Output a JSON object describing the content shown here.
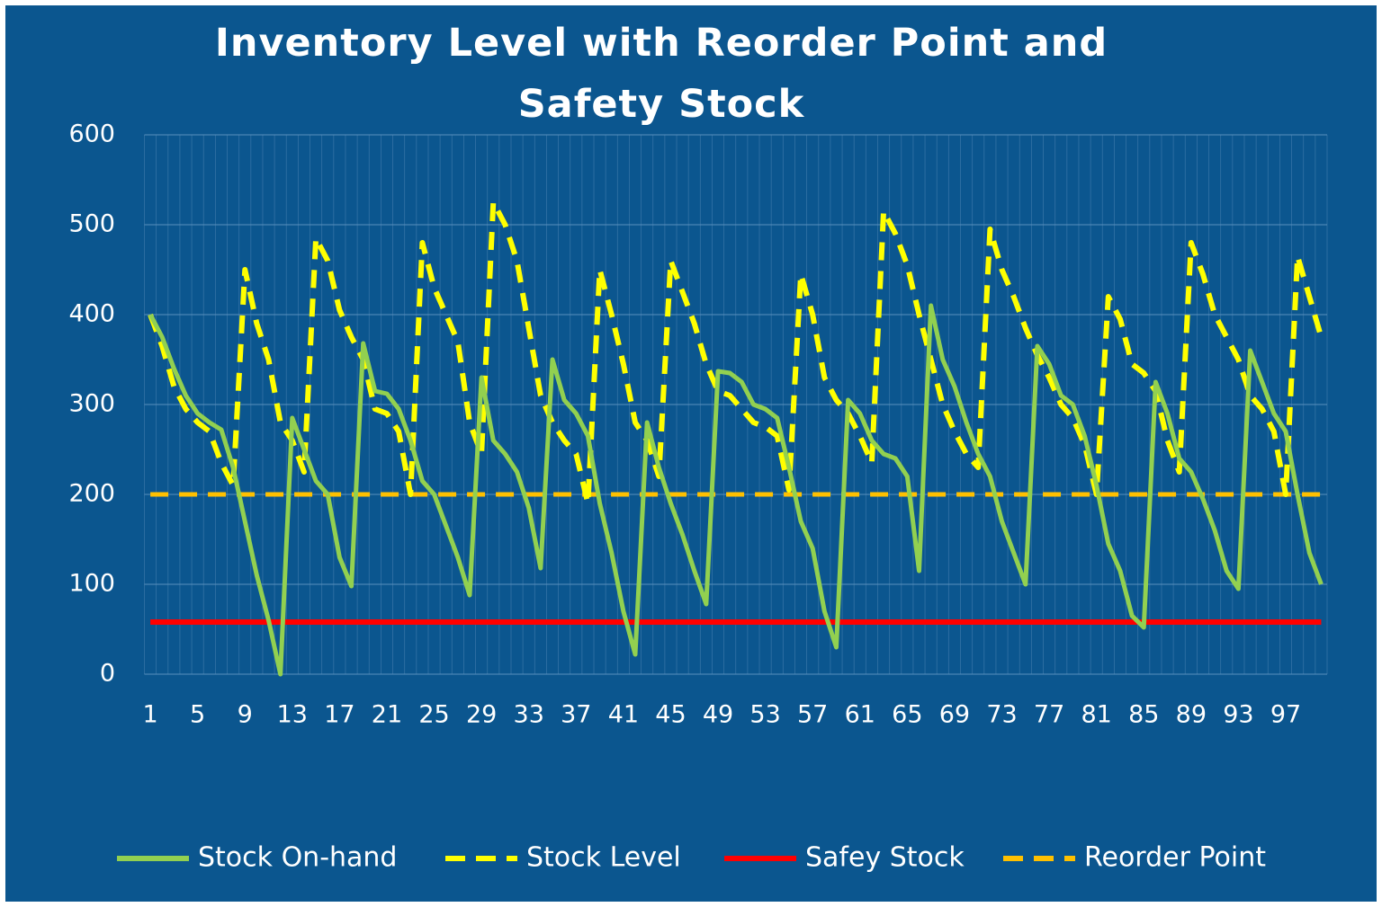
{
  "chart_data": {
    "type": "line",
    "title": "Inventory Level with Reorder Point and Safety Stock",
    "categories": [
      1,
      null,
      null,
      null,
      5,
      null,
      null,
      null,
      9,
      null,
      null,
      null,
      13,
      null,
      null,
      null,
      17,
      null,
      null,
      null,
      21,
      null,
      null,
      null,
      25,
      null,
      null,
      null,
      29,
      null,
      null,
      null,
      33,
      null,
      null,
      null,
      37,
      null,
      null,
      null,
      41,
      null,
      null,
      null,
      45,
      null,
      null,
      null,
      49,
      null,
      null,
      null,
      53,
      null,
      null,
      null,
      57,
      null,
      null,
      null,
      61,
      null,
      null,
      null,
      65,
      null,
      null,
      null,
      69,
      null,
      null,
      null,
      73,
      null,
      null,
      null,
      77,
      null,
      null,
      null,
      81,
      null,
      null,
      null,
      85,
      null,
      null,
      null,
      89,
      null,
      null,
      null,
      93,
      null,
      null,
      null,
      97,
      null,
      null,
      null
    ],
    "series": [
      {
        "name": "Stock On-hand",
        "color": "#92d050",
        "line_style": "solid",
        "values": [
          400,
          375,
          340,
          310,
          290,
          280,
          272,
          230,
          170,
          110,
          60,
          0,
          285,
          250,
          215,
          200,
          130,
          98,
          368,
          315,
          312,
          295,
          260,
          215,
          200,
          165,
          130,
          88,
          330,
          260,
          245,
          225,
          185,
          118,
          350,
          305,
          290,
          265,
          190,
          135,
          70,
          22,
          280,
          230,
          190,
          155,
          115,
          78,
          337,
          335,
          325,
          300,
          295,
          285,
          230,
          170,
          140,
          70,
          30,
          305,
          290,
          260,
          245,
          240,
          220,
          115,
          410,
          350,
          320,
          280,
          245,
          220,
          170,
          135,
          100,
          365,
          345,
          310,
          300,
          265,
          210,
          145,
          115,
          65,
          52,
          325,
          290,
          240,
          225,
          195,
          160,
          115,
          95,
          360,
          325,
          290,
          270,
          200,
          135,
          100
        ]
      },
      {
        "name": "Stock Level",
        "color": "#ffff00",
        "line_style": "dashed",
        "values": [
          400,
          365,
          320,
          295,
          280,
          270,
          235,
          210,
          450,
          390,
          350,
          280,
          260,
          225,
          485,
          460,
          405,
          375,
          350,
          295,
          290,
          270,
          200,
          480,
          430,
          400,
          370,
          280,
          245,
          525,
          500,
          460,
          385,
          310,
          280,
          260,
          245,
          190,
          450,
          400,
          345,
          280,
          260,
          220,
          460,
          425,
          390,
          345,
          315,
          310,
          295,
          280,
          275,
          265,
          205,
          445,
          400,
          330,
          305,
          290,
          265,
          235,
          515,
          490,
          455,
          400,
          350,
          300,
          270,
          245,
          230,
          495,
          450,
          420,
          385,
          355,
          330,
          300,
          285,
          255,
          200,
          420,
          395,
          345,
          335,
          315,
          260,
          225,
          480,
          445,
          400,
          375,
          350,
          310,
          295,
          270,
          200,
          465,
          420,
          375
        ]
      },
      {
        "name": "Safey Stock",
        "color": "#ff0000",
        "line_style": "solid",
        "values": [
          58,
          58,
          58,
          58,
          58,
          58,
          58,
          58,
          58,
          58,
          58,
          58,
          58,
          58,
          58,
          58,
          58,
          58,
          58,
          58,
          58,
          58,
          58,
          58,
          58,
          58,
          58,
          58,
          58,
          58,
          58,
          58,
          58,
          58,
          58,
          58,
          58,
          58,
          58,
          58,
          58,
          58,
          58,
          58,
          58,
          58,
          58,
          58,
          58,
          58,
          58,
          58,
          58,
          58,
          58,
          58,
          58,
          58,
          58,
          58,
          58,
          58,
          58,
          58,
          58,
          58,
          58,
          58,
          58,
          58,
          58,
          58,
          58,
          58,
          58,
          58,
          58,
          58,
          58,
          58,
          58,
          58,
          58,
          58,
          58,
          58,
          58,
          58,
          58,
          58,
          58,
          58,
          58,
          58,
          58,
          58,
          58,
          58,
          58,
          58
        ]
      },
      {
        "name": "Reorder Point",
        "color": "#ffc000",
        "line_style": "dashed",
        "values": [
          200,
          200,
          200,
          200,
          200,
          200,
          200,
          200,
          200,
          200,
          200,
          200,
          200,
          200,
          200,
          200,
          200,
          200,
          200,
          200,
          200,
          200,
          200,
          200,
          200,
          200,
          200,
          200,
          200,
          200,
          200,
          200,
          200,
          200,
          200,
          200,
          200,
          200,
          200,
          200,
          200,
          200,
          200,
          200,
          200,
          200,
          200,
          200,
          200,
          200,
          200,
          200,
          200,
          200,
          200,
          200,
          200,
          200,
          200,
          200,
          200,
          200,
          200,
          200,
          200,
          200,
          200,
          200,
          200,
          200,
          200,
          200,
          200,
          200,
          200,
          200,
          200,
          200,
          200,
          200,
          200,
          200,
          200,
          200,
          200,
          200,
          200,
          200,
          200,
          200,
          200,
          200,
          200,
          200,
          200,
          200,
          200,
          200,
          200,
          200
        ]
      }
    ],
    "ylim": [
      0,
      600
    ],
    "yticks": [
      0,
      100,
      200,
      300,
      400,
      500,
      600
    ],
    "grid": true,
    "legend": "bottom"
  }
}
